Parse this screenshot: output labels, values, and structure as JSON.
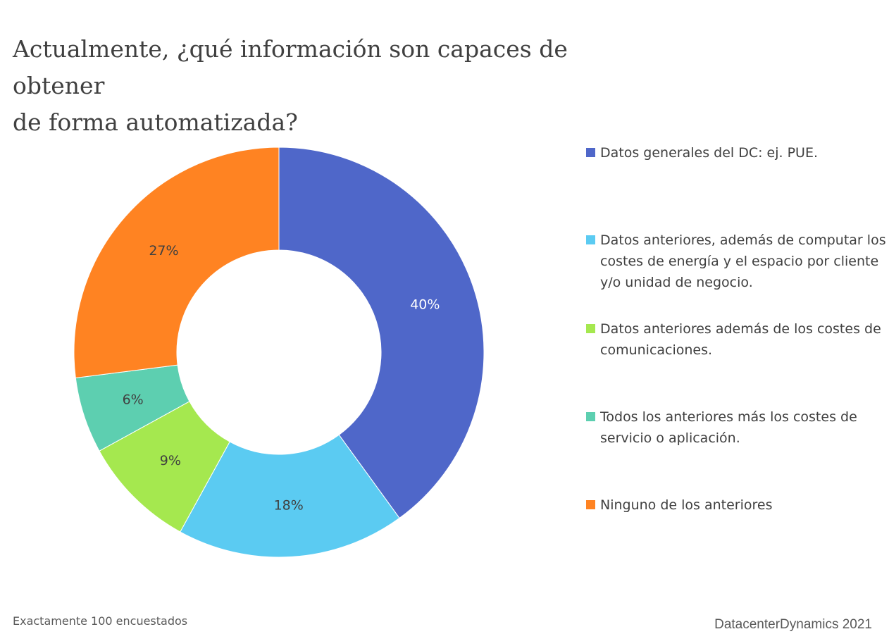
{
  "chart_data": {
    "type": "pie",
    "title": "Actualmente, ¿qué información son capaces de obtener de forma automatizada?",
    "title_lines": [
      "Actualmente, ¿qué información son capaces de obtener",
      "de forma automatizada?"
    ],
    "donut": true,
    "legend_position": "right",
    "slices": [
      {
        "label": "Datos generales del DC: ej. PUE.",
        "value": 40,
        "display": "40%",
        "color": "#4F67C9",
        "label_color": "#ffffff"
      },
      {
        "label": "Datos anteriores, además de computar los costes de energía y el espacio por cliente y/o unidad de negocio.",
        "value": 18,
        "display": "18%",
        "color": "#5BCBF2",
        "label_color": "#404040"
      },
      {
        "label": "Datos anteriores además de los costes de comunicaciones.",
        "value": 9,
        "display": "9%",
        "color": "#A5E84F",
        "label_color": "#404040"
      },
      {
        "label": "Todos los anteriores más los costes de servicio o aplicación.",
        "value": 6,
        "display": "6%",
        "color": "#5DCFB0",
        "label_color": "#404040"
      },
      {
        "label": "Ninguno de los anteriores",
        "value": 27,
        "display": "27%",
        "color": "#FF8322",
        "label_color": "#404040"
      }
    ]
  },
  "footnote": "Exactamente 100 encuestados",
  "source": "DatacenterDynamics 2021"
}
